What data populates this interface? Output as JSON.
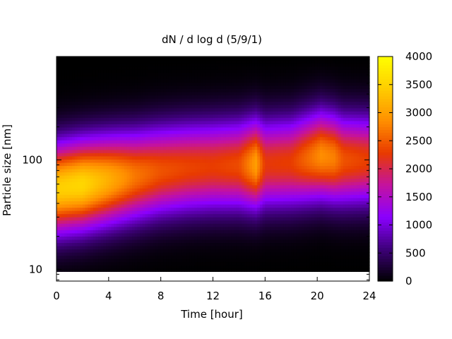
{
  "chart_data": {
    "type": "heatmap",
    "title": "dN / d log d (5/9/1)",
    "xlabel": "Time [hour]",
    "ylabel": "Particle size [nm]",
    "xlim": [
      0,
      24
    ],
    "x_ticks": [
      "0",
      "4",
      "8",
      "12",
      "16",
      "20",
      "24"
    ],
    "x_tick_values": [
      0,
      4,
      8,
      12,
      16,
      20,
      24
    ],
    "y_scale": "log",
    "ylim": [
      7.8,
      880
    ],
    "y_ticks": [
      "10",
      "100"
    ],
    "y_tick_values": [
      10,
      100
    ],
    "colorbar": {
      "range": [
        0,
        4000
      ],
      "ticks": [
        "0",
        "500",
        "1000",
        "1500",
        "2000",
        "2500",
        "3000",
        "3500",
        "4000"
      ],
      "tick_values": [
        0,
        500,
        1000,
        1500,
        2000,
        2500,
        3000,
        3500,
        4000
      ],
      "colormap": [
        "#000000",
        "#3d0078",
        "#8a00ff",
        "#c4129f",
        "#e83a00",
        "#ff8f00",
        "#ffcc00",
        "#ffff00"
      ]
    },
    "grid": false,
    "series": [
      {
        "x": 0,
        "peak_diameter": 55,
        "peak_value": 3450
      },
      {
        "x": 2,
        "peak_diameter": 60,
        "peak_value": 3550
      },
      {
        "x": 4,
        "peak_diameter": 66,
        "peak_value": 3150
      },
      {
        "x": 6,
        "peak_diameter": 72,
        "peak_value": 2700
      },
      {
        "x": 8,
        "peak_diameter": 80,
        "peak_value": 2450
      },
      {
        "x": 10,
        "peak_diameter": 85,
        "peak_value": 2350
      },
      {
        "x": 12,
        "peak_diameter": 88,
        "peak_value": 2300
      },
      {
        "x": 14,
        "peak_diameter": 90,
        "peak_value": 2400
      },
      {
        "x": 15.3,
        "peak_diameter": 92,
        "peak_value": 3000
      },
      {
        "x": 16,
        "peak_diameter": 92,
        "peak_value": 2250
      },
      {
        "x": 18,
        "peak_diameter": 95,
        "peak_value": 2300
      },
      {
        "x": 20.3,
        "peak_diameter": 110,
        "peak_value": 2850
      },
      {
        "x": 21.3,
        "peak_diameter": 105,
        "peak_value": 2750
      },
      {
        "x": 22,
        "peak_diameter": 100,
        "peak_value": 2450
      },
      {
        "x": 24,
        "peak_diameter": 100,
        "peak_value": 2300
      }
    ]
  }
}
